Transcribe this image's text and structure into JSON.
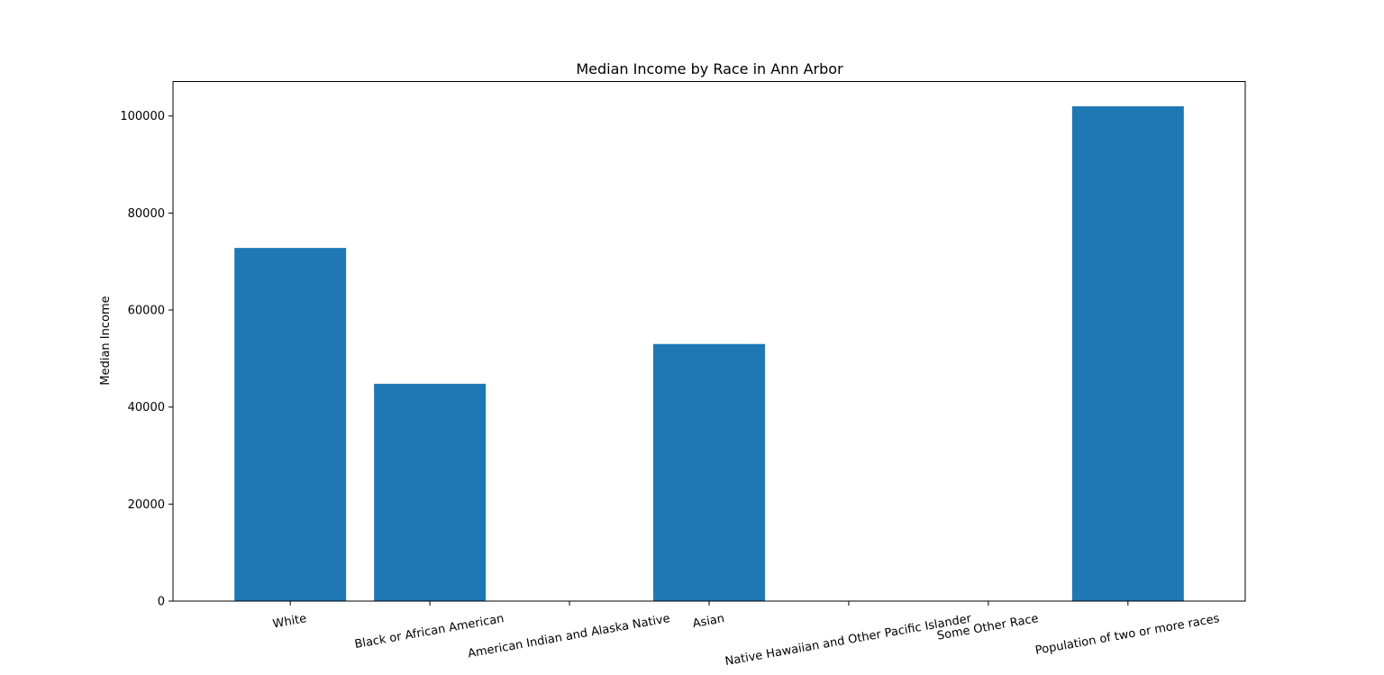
{
  "chart_data": {
    "type": "bar",
    "title": "Median Income by Race in Ann Arbor",
    "xlabel": "",
    "ylabel": "Median Income",
    "categories": [
      "White",
      "Black or African American",
      "American Indian and Alaska Native",
      "Asian",
      "Native Hawaiian and Other Pacific Islander",
      "Some Other Race",
      "Population of two or more races"
    ],
    "values": [
      72800,
      44800,
      0,
      53000,
      0,
      0,
      102000
    ],
    "ylim": [
      0,
      107100
    ],
    "yticks": [
      0,
      20000,
      40000,
      60000,
      80000,
      100000
    ],
    "ytick_labels": [
      "0",
      "20000",
      "40000",
      "60000",
      "80000",
      "100000"
    ],
    "xtick_rotation_deg": 10,
    "grid": false,
    "legend": "none",
    "colors": {
      "bar": "#1f77b4",
      "axis": "#000000",
      "background": "#ffffff"
    }
  }
}
